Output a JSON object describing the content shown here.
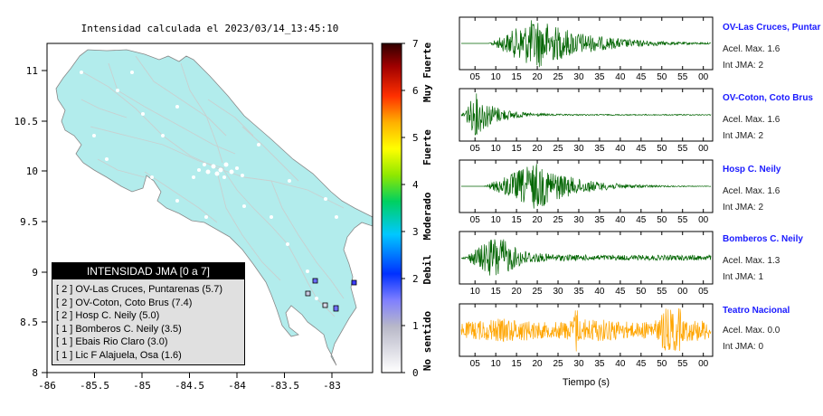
{
  "map": {
    "title": "Intensidad calculada el 2023/03/14_13:45:10",
    "x_ticks": [
      "-86",
      "-85.5",
      "-85",
      "-84.5",
      "-84",
      "-83.5",
      "-83"
    ],
    "y_ticks": [
      "11",
      "10.5",
      "10",
      "9.5",
      "9",
      "8.5",
      "8"
    ],
    "land_color": "#b2ecec",
    "legend": {
      "title": "INTENSIDAD JMA [0 a 7]",
      "rows": [
        "[ 2 ]  OV-Las Cruces, Puntarenas (5.7)",
        "[ 2 ]  OV-Coton, Coto Brus (7.4)",
        "[ 2 ]  Hosp C. Neily (5.0)",
        "[ 1 ]  Bomberos C. Neily (3.5)",
        "[ 1 ]  Ebais Rio Claro (3.0)",
        "[ 1 ]  Lic F Alajuela, Osa (1.6)"
      ]
    }
  },
  "colorbar": {
    "ticks": [
      "7",
      "6",
      "5",
      "4",
      "3",
      "2",
      "1",
      "0"
    ],
    "labels": [
      "Muy Fuerte",
      "Fuerte",
      "Moderado",
      "Debil",
      "No sentido"
    ]
  },
  "waveforms": {
    "xlabel": "Tiempo (s)",
    "stations": [
      {
        "name": "OV-Las Cruces, Puntar",
        "acel": "Acel. Max. 1.6",
        "int": "Int JMA: 2",
        "ticks": [
          "05",
          "10",
          "15",
          "20",
          "25",
          "30",
          "35",
          "40",
          "45",
          "50",
          "55",
          "00"
        ],
        "color": "#006400"
      },
      {
        "name": "OV-Coton, Coto Brus",
        "acel": "Acel. Max. 1.6",
        "int": "Int JMA: 2",
        "ticks": [
          "05",
          "10",
          "15",
          "20",
          "25",
          "30",
          "35",
          "40",
          "45",
          "50",
          "55",
          "00"
        ],
        "color": "#006400"
      },
      {
        "name": "Hosp C. Neily",
        "acel": "Acel. Max. 1.6",
        "int": "Int JMA: 2",
        "ticks": [
          "05",
          "10",
          "15",
          "20",
          "25",
          "30",
          "35",
          "40",
          "45",
          "50",
          "55",
          "00"
        ],
        "color": "#006400"
      },
      {
        "name": "Bomberos C. Neily",
        "acel": "Acel. Max. 1.3",
        "int": "Int JMA: 1",
        "ticks": [
          "10",
          "15",
          "20",
          "25",
          "30",
          "35",
          "40",
          "45",
          "50",
          "55",
          "00",
          "05"
        ],
        "color": "#006400"
      },
      {
        "name": "Teatro Nacional",
        "acel": "Acel. Max. 0.0",
        "int": "Int JMA: 0",
        "ticks": [
          "05",
          "10",
          "15",
          "20",
          "25",
          "30",
          "35",
          "40",
          "45",
          "50",
          "55",
          "00"
        ],
        "color": "#ffa500"
      }
    ]
  }
}
